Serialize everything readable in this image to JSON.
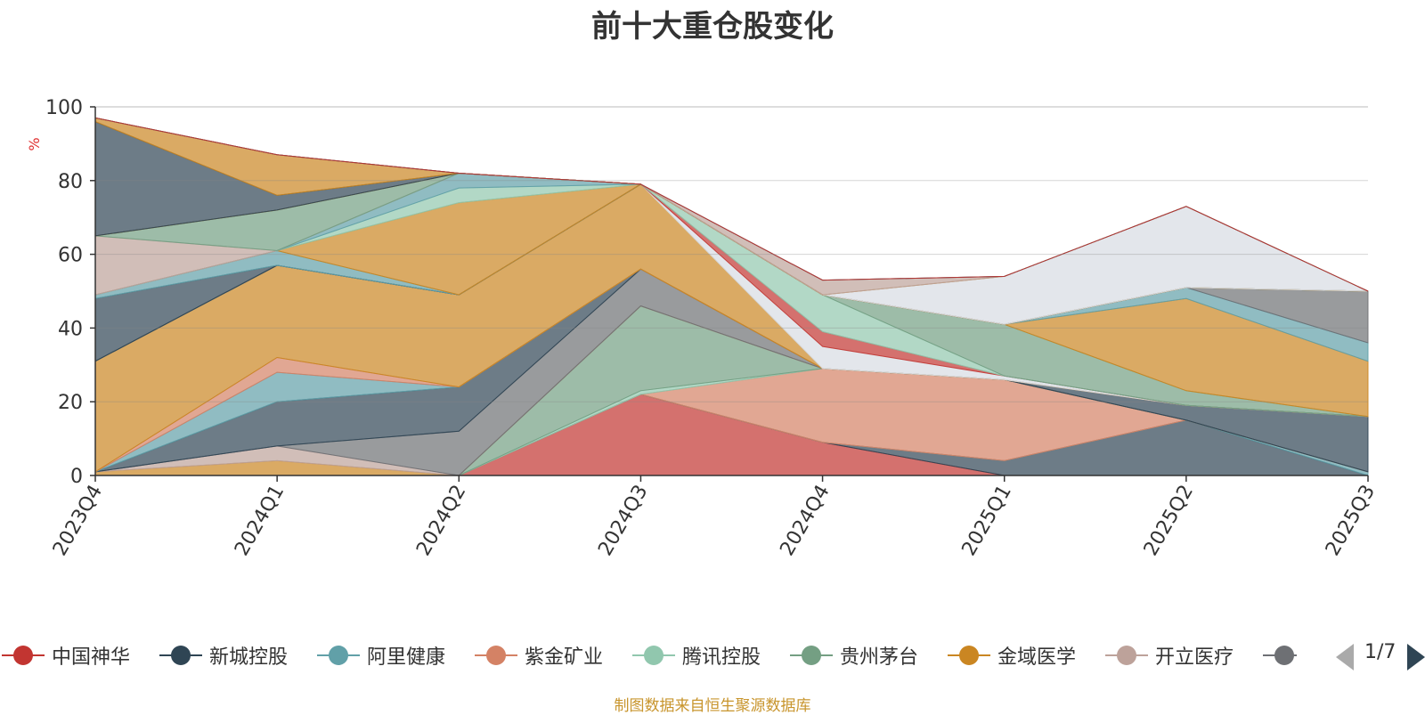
{
  "chart_data": {
    "type": "area",
    "title": "前十大重仓股变化",
    "ylabel": "%",
    "ylim": [
      0,
      100
    ],
    "yticks": [
      "0",
      "20",
      "40",
      "60",
      "80",
      "100"
    ],
    "categories": [
      "2023Q4",
      "2024Q1",
      "2024Q2",
      "2024Q3",
      "2024Q4",
      "2025Q1",
      "2025Q2",
      "2025Q3"
    ],
    "stacked": true,
    "series": [
      {
        "name": "中国神华",
        "color": "#c23531",
        "values": [
          0,
          0,
          0,
          22,
          9,
          0,
          0,
          0
        ]
      },
      {
        "name": "新城控股",
        "color": "#2f4554",
        "values": [
          0,
          0,
          0,
          0,
          0,
          4,
          15,
          0
        ]
      },
      {
        "name": "阿里健康",
        "color": "#61a0a8",
        "values": [
          0,
          0,
          0,
          0,
          0,
          0,
          0,
          1
        ]
      },
      {
        "name": "紫金矿业",
        "color": "#d48265",
        "values": [
          0,
          0,
          0,
          0,
          20,
          22,
          0,
          0
        ]
      },
      {
        "name": "腾讯控股",
        "color": "#91c7ae",
        "values": [
          0,
          0,
          0,
          1,
          0,
          0,
          0,
          0
        ]
      },
      {
        "name": "贵州茅台",
        "color": "#749f83",
        "values": [
          0,
          0,
          0,
          23,
          0,
          0,
          0,
          0
        ]
      },
      {
        "name": "金域医学",
        "color": "#ca8622",
        "values": [
          1,
          4,
          0,
          0,
          0,
          0,
          0,
          0
        ]
      },
      {
        "name": "开立医疗",
        "color": "#bda29a",
        "values": [
          0,
          4,
          0,
          0,
          0,
          0,
          0,
          0
        ]
      },
      {
        "name": "",
        "color": "#6e7074",
        "values": [
          0,
          0,
          12,
          10,
          0,
          0,
          0,
          0
        ]
      },
      {
        "name": "",
        "color": "#2f4554",
        "values": [
          0,
          12,
          12,
          0,
          0,
          0,
          4,
          15
        ]
      },
      {
        "name": "",
        "color": "#61a0a8",
        "values": [
          0,
          8,
          0,
          0,
          0,
          0,
          0,
          0
        ]
      },
      {
        "name": "",
        "color": "#d48265",
        "values": [
          0,
          4,
          0,
          0,
          0,
          0,
          0,
          0
        ]
      },
      {
        "name": "",
        "color": "#ca8622",
        "values": [
          30,
          25,
          25,
          23,
          0,
          0,
          0,
          0
        ]
      },
      {
        "name": "",
        "color": "#d7dce2",
        "values": [
          0,
          0,
          0,
          0,
          6,
          1,
          0,
          0
        ]
      },
      {
        "name": "",
        "color": "#c23531",
        "values": [
          0,
          0,
          0,
          0,
          4,
          0,
          0,
          0
        ]
      },
      {
        "name": "",
        "color": "#91c7ae",
        "values": [
          0,
          0,
          0,
          0,
          10,
          0,
          0,
          0
        ]
      },
      {
        "name": "",
        "color": "#749f83",
        "values": [
          0,
          0,
          0,
          0,
          0,
          14,
          4,
          0
        ]
      },
      {
        "name": "",
        "color": "#ca8622",
        "values": [
          0,
          0,
          0,
          0,
          0,
          0,
          25,
          15
        ]
      },
      {
        "name": "",
        "color": "#61a0a8",
        "values": [
          0,
          0,
          0,
          0,
          0,
          0,
          3,
          5
        ]
      },
      {
        "name": "",
        "color": "#6e7074",
        "values": [
          0,
          0,
          0,
          0,
          0,
          0,
          0,
          14
        ]
      },
      {
        "name": "",
        "color": "#2f4554",
        "values": [
          17,
          0,
          0,
          0,
          0,
          0,
          0,
          0
        ]
      },
      {
        "name": "",
        "color": "#61a0a8",
        "values": [
          1,
          4,
          0,
          0,
          0,
          0,
          0,
          0
        ]
      },
      {
        "name": "",
        "color": "#ca8622",
        "values": [
          0,
          0,
          25,
          0,
          0,
          0,
          0,
          0
        ]
      },
      {
        "name": "",
        "color": "#91c7ae",
        "values": [
          0,
          0,
          4,
          0,
          0,
          0,
          0,
          0
        ]
      },
      {
        "name": "",
        "color": "#61a0a8",
        "values": [
          0,
          0,
          4,
          0,
          0,
          0,
          0,
          0
        ]
      },
      {
        "name": "",
        "color": "#bda29a",
        "values": [
          16,
          0,
          0,
          0,
          0,
          0,
          0,
          0
        ]
      },
      {
        "name": "",
        "color": "#749f83",
        "values": [
          0,
          11,
          0,
          0,
          0,
          0,
          0,
          0
        ]
      },
      {
        "name": "",
        "color": "#ca8622",
        "values": [
          0,
          0,
          0,
          0,
          0,
          0,
          0,
          0
        ]
      },
      {
        "name": "",
        "color": "#2f4554",
        "values": [
          31,
          4,
          0,
          0,
          0,
          0,
          0,
          0
        ]
      },
      {
        "name": "",
        "color": "#ca8622",
        "values": [
          1,
          11,
          0,
          0,
          0,
          0,
          0,
          0
        ]
      },
      {
        "name": "",
        "color": "#d7dce2",
        "values": [
          0,
          0,
          0,
          0,
          0,
          13,
          22,
          0
        ]
      },
      {
        "name": "",
        "color": "#ca8622",
        "values": [
          0,
          0,
          0,
          0,
          0,
          0,
          0,
          0
        ]
      },
      {
        "name": "",
        "color": "#bda29a",
        "values": [
          0,
          0,
          0,
          0,
          4,
          0,
          0,
          0
        ]
      },
      {
        "name": "",
        "color": "#2f4554",
        "values": [
          0,
          0,
          0,
          0,
          0,
          0,
          0,
          0
        ]
      },
      {
        "name": "",
        "color": "#c23531",
        "values": [
          0,
          0,
          0,
          0,
          0,
          0,
          0,
          0
        ]
      }
    ],
    "legend": {
      "position": "bottom",
      "visible_items": [
        {
          "name": "中国神华",
          "color": "#c23531"
        },
        {
          "name": "新城控股",
          "color": "#2f4554"
        },
        {
          "name": "阿里健康",
          "color": "#61a0a8"
        },
        {
          "name": "紫金矿业",
          "color": "#d48265"
        },
        {
          "name": "腾讯控股",
          "color": "#91c7ae"
        },
        {
          "name": "贵州茅台",
          "color": "#749f83"
        },
        {
          "name": "金域医学",
          "color": "#ca8622"
        },
        {
          "name": "开立医疗",
          "color": "#bda29a"
        },
        {
          "name": "",
          "color": "#6e7074"
        }
      ],
      "page": "1/7"
    },
    "grid": true,
    "source_note": "制图数据来自恒生聚源数据库"
  }
}
